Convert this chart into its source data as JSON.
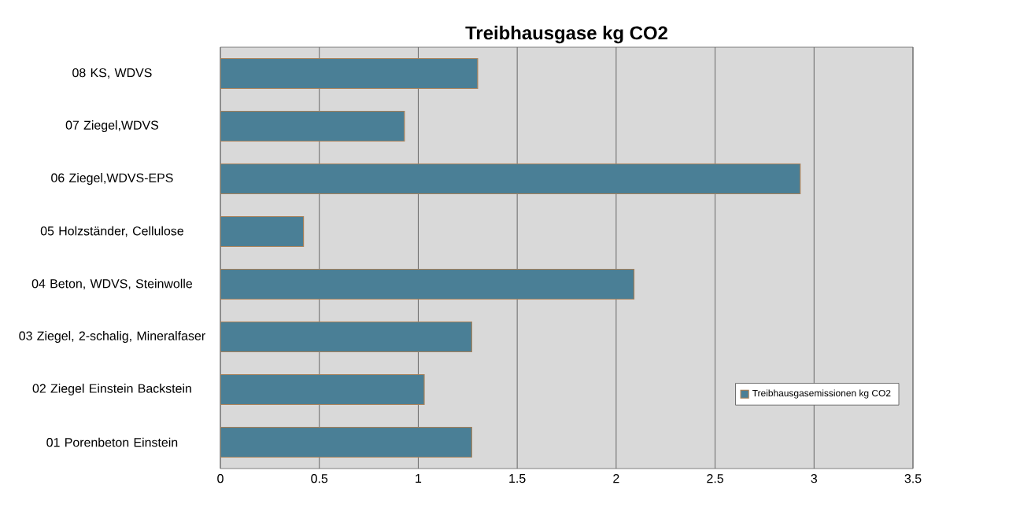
{
  "chart_data": {
    "type": "bar",
    "orientation": "horizontal",
    "title": "Treibhausgase kg CO2",
    "categories": [
      "08 KS, WDVS",
      "07 Ziegel,WDVS",
      "06 Ziegel,WDVS-EPS",
      "05 Holzständer, Cellulose",
      "04 Beton, WDVS, Steinwolle",
      "03 Ziegel, 2-schalig, Mineralfaser",
      "02 Ziegel Einstein Backstein",
      "01 Porenbeton Einstein"
    ],
    "series": [
      {
        "name": "Treibhausgasemissionen kg CO2",
        "color": "#4a7f96",
        "values": [
          1.3,
          0.93,
          2.93,
          0.42,
          2.09,
          1.27,
          1.03,
          1.27
        ]
      }
    ],
    "xlim": [
      0,
      3.5
    ],
    "xticks": [
      0,
      0.5,
      1,
      1.5,
      2,
      2.5,
      3,
      3.5
    ],
    "grid": "x",
    "legend": "bottom right"
  }
}
